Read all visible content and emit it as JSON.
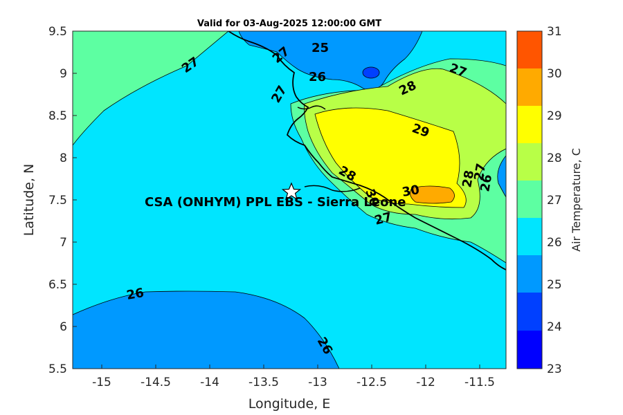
{
  "title": "Valid for 03-Aug-2025 12:00:00 GMT",
  "site_label": "CSA (ONHYM) PPL EBS  - Sierra Leone",
  "x_axis": {
    "label": "Longitude, E",
    "range": [
      -15.25,
      -11.25
    ],
    "ticks": [
      "-15",
      "-14.5",
      "-14",
      "-13.5",
      "-13",
      "-12.5",
      "-12",
      "-11.5"
    ]
  },
  "y_axis": {
    "label": "Latitude, N",
    "range": [
      5.5,
      9.5
    ],
    "ticks": [
      "5.5",
      "6",
      "6.5",
      "7",
      "7.5",
      "8",
      "8.5",
      "9",
      "9.5"
    ]
  },
  "colorbar": {
    "label": "Air Temperature, C",
    "ticks": [
      "23",
      "24",
      "25",
      "26",
      "27",
      "28",
      "29",
      "30",
      "31"
    ],
    "colors": [
      "#0000ff",
      "#0040ff",
      "#0099ff",
      "#00e5ff",
      "#5dffa2",
      "#b8ff47",
      "#ffff00",
      "#ffaa00",
      "#ff5500"
    ]
  },
  "contour_labels": [
    "27",
    "27",
    "25",
    "26",
    "27",
    "28",
    "27",
    "29",
    "28",
    "28",
    "27",
    "26",
    "30",
    "27",
    "26",
    "26",
    "30"
  ],
  "marker": {
    "lon": -13.23,
    "lat": 7.58
  }
}
